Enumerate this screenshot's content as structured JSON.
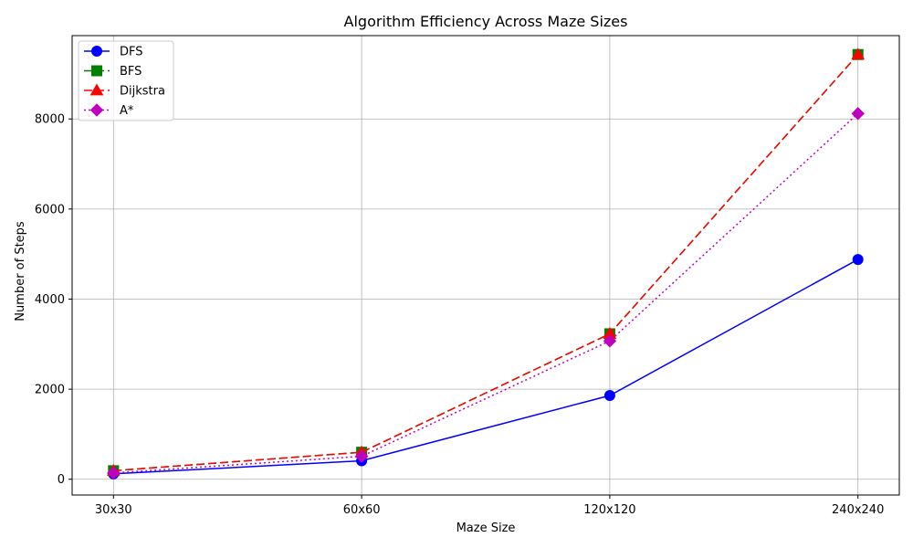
{
  "chart_data": {
    "type": "line",
    "title": "Algorithm Efficiency Across Maze Sizes",
    "xlabel": "Maze Size",
    "ylabel": "Number of Steps",
    "categories": [
      "30x30",
      "60x60",
      "120x120",
      "240x240"
    ],
    "ylim": [
      -350,
      9850
    ],
    "yticks": [
      0,
      2000,
      4000,
      6000,
      8000
    ],
    "grid": true,
    "legend_position": "top-left",
    "series": [
      {
        "name": "DFS",
        "values": [
          120,
          410,
          1860,
          4880
        ],
        "color": "#0000ff",
        "marker": "circle",
        "dash": "solid"
      },
      {
        "name": "BFS",
        "values": [
          190,
          600,
          3230,
          9430
        ],
        "color": "#008000",
        "marker": "square",
        "dash": "dashed"
      },
      {
        "name": "Dijkstra",
        "values": [
          190,
          600,
          3230,
          9430
        ],
        "color": "#ff0000",
        "marker": "triangle",
        "dash": "dashed"
      },
      {
        "name": "A*",
        "values": [
          140,
          510,
          3070,
          8120
        ],
        "color": "#bf00bf",
        "marker": "diamond",
        "dash": "dotted"
      }
    ]
  }
}
